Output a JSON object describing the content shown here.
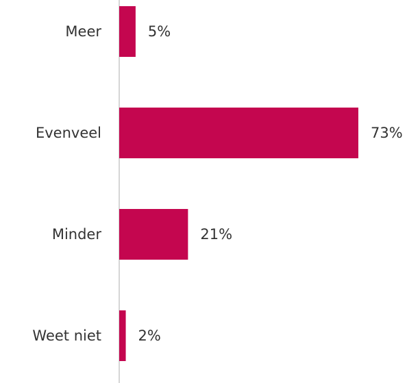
{
  "chart_data": {
    "type": "bar",
    "orientation": "horizontal",
    "categories": [
      "Meer",
      "Evenveel",
      "Minder",
      "Weet niet"
    ],
    "values": [
      5,
      73,
      21,
      2
    ],
    "value_labels": [
      "5%",
      "73%",
      "21%",
      "2%"
    ],
    "unit": "%",
    "xlim": [
      0,
      100
    ],
    "title": "",
    "xlabel": "",
    "ylabel": "",
    "grid": false,
    "legend": "none",
    "bar_color": "#c4064f",
    "axis_color": "#c8c8c8",
    "text_color": "#333333"
  }
}
